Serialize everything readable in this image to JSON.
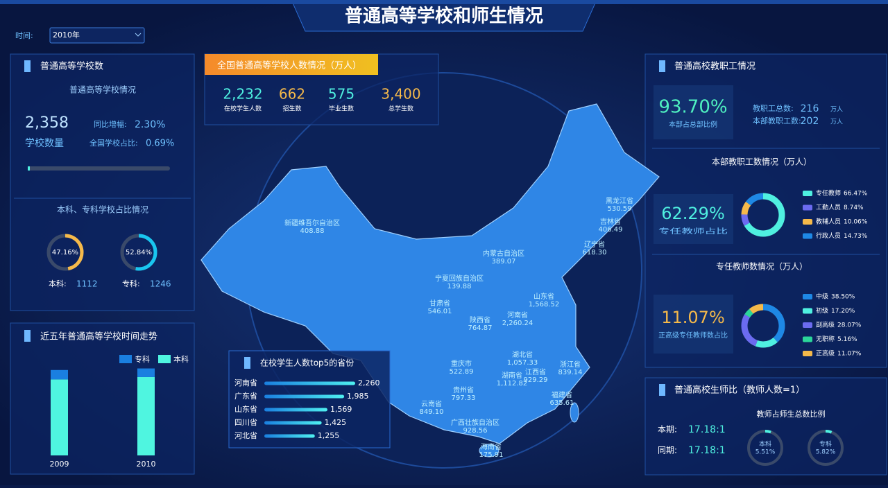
{
  "header": {
    "title": "普通高等学校和师生情况"
  },
  "filter": {
    "label": "时间:",
    "value": "2010年"
  },
  "school_panel": {
    "title": "普通高等学校数",
    "subtitle": "普通高等学校情况",
    "count": "2,358",
    "count_label": "学校数量",
    "yoy_label": "同比增幅:",
    "yoy": "2.30%",
    "share_label": "全国学校占比:",
    "share": "0.69%",
    "ratio_title": "本科、专科学校占比情况",
    "ratios": [
      {
        "name": "本科:",
        "count": "1112",
        "value": 47.16,
        "value_label": "47.16%",
        "color": "#f5b94a"
      },
      {
        "name": "专科:",
        "count": "1246",
        "value": 52.84,
        "value_label": "52.84%",
        "color": "#19c6f0"
      }
    ]
  },
  "trend_panel": {
    "title": "近五年普通高等学校时间走势",
    "categories": [
      "2009",
      "2010"
    ],
    "ylim": [
      0,
      115
    ],
    "series": [
      {
        "name": "本科",
        "color": "#4ff5e0",
        "values": [
          97,
          100
        ]
      },
      {
        "name": "专科",
        "color": "#1a7fe0",
        "values": [
          12,
          11
        ]
      }
    ],
    "legend_order": [
      1,
      0
    ]
  },
  "students_panel": {
    "title": "全国普通高等学校人数情况（万人）",
    "stats": [
      {
        "value": "2,232",
        "label": "在校学生人数",
        "color": "#4ff0e0"
      },
      {
        "value": "662",
        "label": "招生数",
        "color": "#f5b94a"
      },
      {
        "value": "575",
        "label": "毕业生数",
        "color": "#4ff0e0"
      },
      {
        "value": "3,400",
        "label": "总学生数",
        "color": "#f5b94a"
      }
    ]
  },
  "map": {
    "provinces": [
      {
        "name": "新疆维吾尔自治区",
        "value": "408.88"
      },
      {
        "name": "黑龙江省",
        "value": "530.59"
      },
      {
        "name": "吉林省",
        "value": "406.49"
      },
      {
        "name": "辽宁省",
        "value": "618.30"
      },
      {
        "name": "内蒙古自治区",
        "value": "389.07"
      },
      {
        "name": "宁夏回族自治区",
        "value": "139.88"
      },
      {
        "name": "甘肃省",
        "value": "546.01"
      },
      {
        "name": "山东省",
        "value": "1,568.52"
      },
      {
        "name": "河南省",
        "value": "2,260.24"
      },
      {
        "name": "陕西省",
        "value": "764.87"
      },
      {
        "name": "重庆市",
        "value": "522.89"
      },
      {
        "name": "湖北省",
        "value": "1,057.33"
      },
      {
        "name": "浙江省",
        "value": "839.14"
      },
      {
        "name": "湖南省",
        "value": "1,112.82"
      },
      {
        "name": "江西省",
        "value": "929.29"
      },
      {
        "name": "贵州省",
        "value": "797.33"
      },
      {
        "name": "云南省",
        "value": "849.10"
      },
      {
        "name": "广西壮族自治区",
        "value": "928.56"
      },
      {
        "name": "福建省",
        "value": "635.61"
      },
      {
        "name": "海南省",
        "value": "175.91"
      }
    ]
  },
  "top5": {
    "title": "在校学生人数top5的省份",
    "categories": [
      "河南省",
      "广东省",
      "山东省",
      "四川省",
      "河北省"
    ],
    "values": [
      2260,
      1985,
      1569,
      1425,
      1255
    ],
    "value_labels": [
      "2,260",
      "1,985",
      "1,569",
      "1,425",
      "1,255"
    ]
  },
  "staff_panel": {
    "title": "普通高校教职工情况",
    "ratio": "93.70%",
    "ratio_label": "本部占总部比例",
    "total_label": "教职工总数:",
    "total": "216",
    "total_unit": "万人",
    "main_label": "本部教职工数:",
    "main": "202",
    "main_unit": "万人",
    "breakdown": {
      "title": "本部教职工数情况（万人）",
      "big": "62.29%",
      "big_label": "专任教师占比",
      "segments": [
        {
          "name": "专任教师",
          "value": 66.47,
          "value_label": "66.47%",
          "color": "#4ff0e0"
        },
        {
          "name": "工勤人员",
          "value": 8.74,
          "value_label": "8.74%",
          "color": "#6b6bf0"
        },
        {
          "name": "教辅人员",
          "value": 10.06,
          "value_label": "10.06%",
          "color": "#f5b94a"
        },
        {
          "name": "行政人员",
          "value": 14.73,
          "value_label": "14.73%",
          "color": "#1e88e5"
        }
      ]
    },
    "teachers": {
      "title": "专任教师数情况（万人）",
      "big": "11.07%",
      "big_label": "正高级专任教师数占比",
      "segments": [
        {
          "name": "中级",
          "value": 38.5,
          "value_label": "38.50%",
          "color": "#1e88e5"
        },
        {
          "name": "初级",
          "value": 17.2,
          "value_label": "17.20%",
          "color": "#4ff0e0"
        },
        {
          "name": "副高级",
          "value": 28.07,
          "value_label": "28.07%",
          "color": "#6b6bf0"
        },
        {
          "name": "无职称",
          "value": 5.16,
          "value_label": "5.16%",
          "color": "#2bd69a"
        },
        {
          "name": "正高级",
          "value": 11.07,
          "value_label": "11.07%",
          "color": "#f5b94a"
        }
      ]
    }
  },
  "ratio_panel": {
    "title": "普通高校生师比（教师人数=1）",
    "current_label": "本期:",
    "current": "17.18:1",
    "prior_label": "同期:",
    "prior": "17.18:1",
    "share_title": "教师占师生总数比例",
    "shares": [
      {
        "name": "本科",
        "value": 5.51,
        "value_label": "5.51%"
      },
      {
        "name": "专科",
        "value": 5.82,
        "value_label": "5.82%"
      }
    ]
  }
}
